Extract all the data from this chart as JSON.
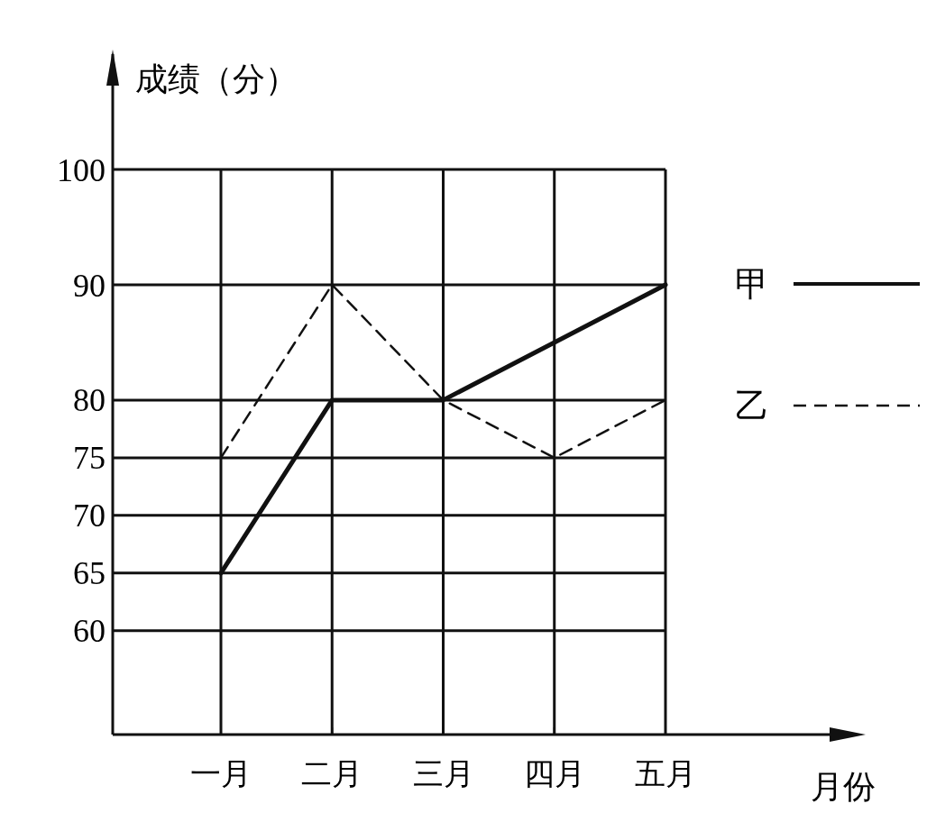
{
  "chart_data": {
    "type": "line",
    "ylabel": "成绩（分）",
    "xlabel": "月份",
    "categories": [
      "一月",
      "二月",
      "三月",
      "四月",
      "五月"
    ],
    "series": [
      {
        "name": "甲",
        "color": "#111111",
        "values": [
          65,
          80,
          80,
          85,
          90
        ],
        "line_style": "solid"
      },
      {
        "name": "乙",
        "color": "#111111",
        "values": [
          75,
          90,
          80,
          75,
          80
        ],
        "line_style": "dashed"
      }
    ],
    "ylim": [
      51,
      110
    ],
    "yticks": [
      60,
      65,
      70,
      75,
      80,
      90,
      100
    ],
    "grid": true,
    "legend": "right",
    "marker": "none"
  }
}
